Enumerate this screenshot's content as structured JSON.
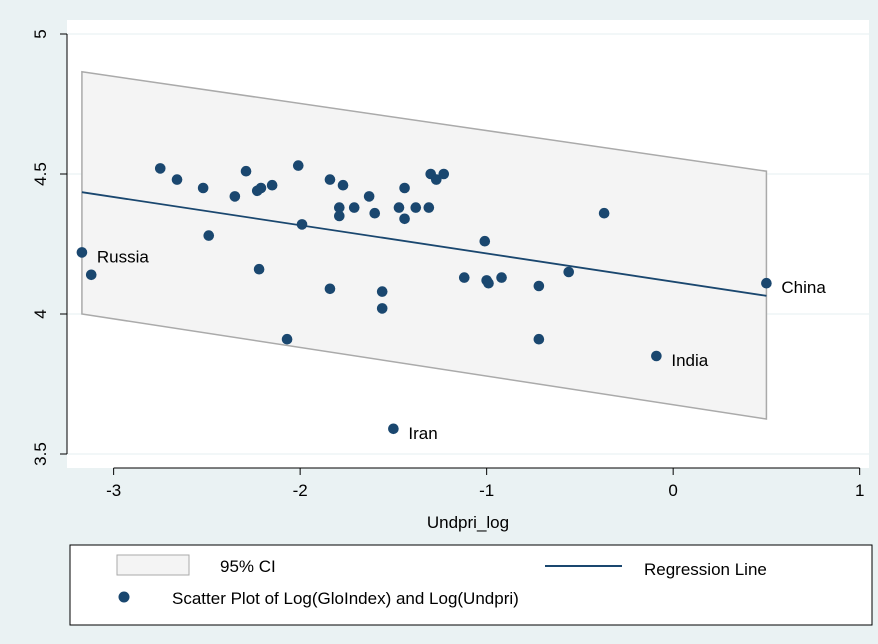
{
  "chart_data": {
    "type": "scatter",
    "title": "",
    "xlabel": "Undpri_log",
    "ylabel": "",
    "xlim": [
      -3.25,
      1.05
    ],
    "ylim": [
      3.45,
      5.05
    ],
    "xticks": [
      -3,
      -2,
      -1,
      0,
      1
    ],
    "yticks": [
      3.5,
      4,
      4.5,
      5
    ],
    "x_tick_labels": [
      "-3",
      "-2",
      "-1",
      "0",
      "1"
    ],
    "y_tick_labels": [
      "3.5",
      "4",
      "4.5",
      "5"
    ],
    "grid": true,
    "legend_position": "bottom",
    "series": [
      {
        "name": "Scatter Plot of Log(GloIndex) and  Log(Undpri)",
        "kind": "scatter",
        "color": "#1a476f",
        "points": [
          {
            "x": -3.17,
            "y": 4.22,
            "label": "Russia"
          },
          {
            "x": -3.12,
            "y": 4.14
          },
          {
            "x": -2.75,
            "y": 4.52
          },
          {
            "x": -2.66,
            "y": 4.48
          },
          {
            "x": -2.52,
            "y": 4.45
          },
          {
            "x": -2.49,
            "y": 4.28
          },
          {
            "x": -2.35,
            "y": 4.42
          },
          {
            "x": -2.29,
            "y": 4.51
          },
          {
            "x": -2.23,
            "y": 4.44
          },
          {
            "x": -2.22,
            "y": 4.16
          },
          {
            "x": -2.21,
            "y": 4.45
          },
          {
            "x": -2.15,
            "y": 4.46
          },
          {
            "x": -2.07,
            "y": 3.91
          },
          {
            "x": -2.01,
            "y": 4.53
          },
          {
            "x": -1.99,
            "y": 4.32
          },
          {
            "x": -1.84,
            "y": 4.48
          },
          {
            "x": -1.84,
            "y": 4.09
          },
          {
            "x": -1.79,
            "y": 4.38
          },
          {
            "x": -1.79,
            "y": 4.35
          },
          {
            "x": -1.77,
            "y": 4.46
          },
          {
            "x": -1.71,
            "y": 4.38
          },
          {
            "x": -1.63,
            "y": 4.42
          },
          {
            "x": -1.6,
            "y": 4.36
          },
          {
            "x": -1.56,
            "y": 4.08
          },
          {
            "x": -1.56,
            "y": 4.02
          },
          {
            "x": -1.5,
            "y": 3.59,
            "label": "Iran"
          },
          {
            "x": -1.47,
            "y": 4.38
          },
          {
            "x": -1.44,
            "y": 4.45
          },
          {
            "x": -1.44,
            "y": 4.34
          },
          {
            "x": -1.38,
            "y": 4.38
          },
          {
            "x": -1.31,
            "y": 4.38
          },
          {
            "x": -1.3,
            "y": 4.5
          },
          {
            "x": -1.27,
            "y": 4.48
          },
          {
            "x": -1.23,
            "y": 4.5
          },
          {
            "x": -1.12,
            "y": 4.13
          },
          {
            "x": -1.01,
            "y": 4.26
          },
          {
            "x": -1.0,
            "y": 4.12
          },
          {
            "x": -0.99,
            "y": 4.11
          },
          {
            "x": -0.92,
            "y": 4.13
          },
          {
            "x": -0.72,
            "y": 4.1
          },
          {
            "x": -0.72,
            "y": 3.91
          },
          {
            "x": -0.56,
            "y": 4.15
          },
          {
            "x": -0.37,
            "y": 4.36
          },
          {
            "x": -0.09,
            "y": 3.85,
            "label": "India"
          },
          {
            "x": 0.5,
            "y": 4.11,
            "label": "China"
          }
        ]
      },
      {
        "name": "Regression Line",
        "kind": "line",
        "color": "#1a476f",
        "x": [
          -3.17,
          0.5
        ],
        "y": [
          4.435,
          4.065
        ]
      },
      {
        "name": "95% CI",
        "kind": "band",
        "fill": "#f4f4f4",
        "stroke": "#aaaaaa",
        "x": [
          -3.17,
          0.5
        ],
        "upper": [
          4.865,
          4.51
        ],
        "lower": [
          4.0,
          3.625
        ]
      }
    ]
  },
  "legend": {
    "ci_label": "95% CI",
    "line_label": "Regression Line",
    "scatter_label": "Scatter Plot of Log(GloIndex) and  Log(Undpri)"
  }
}
